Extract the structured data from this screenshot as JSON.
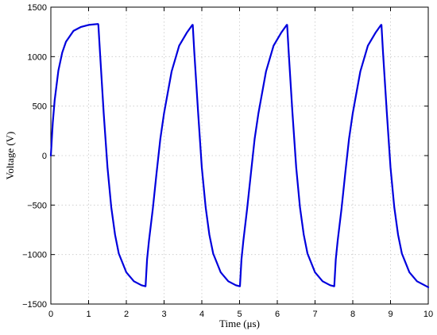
{
  "chart_data": {
    "type": "line",
    "xlabel": "Time (μs)",
    "ylabel": "Voltage (V)",
    "xlim": [
      0,
      10
    ],
    "ylim": [
      -1500,
      1500
    ],
    "x_ticks": [
      0,
      1,
      2,
      3,
      4,
      5,
      6,
      7,
      8,
      9,
      10
    ],
    "y_ticks": [
      -1500,
      -1000,
      -500,
      0,
      500,
      1000,
      1500
    ],
    "x_tick_labels": [
      "0",
      "1",
      "2",
      "3",
      "4",
      "5",
      "6",
      "7",
      "8",
      "9",
      "10"
    ],
    "y_tick_labels": [
      "−1500",
      "−1000",
      "−500",
      "0",
      "500",
      "1000",
      "1500"
    ],
    "grid": true,
    "line_color": "#0000dd",
    "series": [
      {
        "x": [
          0,
          0.05,
          0.1,
          0.2,
          0.3,
          0.4,
          0.6,
          0.8,
          1.0,
          1.25,
          1.26,
          1.3,
          1.4,
          1.5,
          1.6,
          1.7,
          1.8,
          2.0,
          2.2,
          2.4,
          2.5,
          2.51,
          2.55,
          2.6,
          2.7,
          2.8,
          2.9,
          3.0,
          3.2,
          3.4,
          3.6,
          3.75,
          3.76,
          3.8,
          3.9,
          4.0,
          4.1,
          4.2,
          4.3,
          4.5,
          4.7,
          4.9,
          5.0,
          5.01,
          5.05,
          5.1,
          5.2,
          5.3,
          5.4,
          5.5,
          5.7,
          5.9,
          6.1,
          6.25,
          6.26,
          6.3,
          6.4,
          6.5,
          6.6,
          6.7,
          6.8,
          7.0,
          7.2,
          7.4,
          7.5,
          7.51,
          7.55,
          7.6,
          7.7,
          7.8,
          7.9,
          8.0,
          8.2,
          8.4,
          8.6,
          8.75,
          8.76,
          8.8,
          8.9,
          9.0,
          9.1,
          9.2,
          9.3,
          9.5,
          9.7,
          9.9,
          10.0
        ],
        "values": [
          0,
          330,
          560,
          860,
          1040,
          1150,
          1260,
          1300,
          1320,
          1330,
          1320,
          1050,
          430,
          -120,
          -520,
          -800,
          -990,
          -1180,
          -1270,
          -1310,
          -1320,
          -1320,
          -1050,
          -860,
          -540,
          -180,
          170,
          430,
          850,
          1110,
          1240,
          1320,
          1320,
          1050,
          440,
          -120,
          -520,
          -800,
          -990,
          -1180,
          -1270,
          -1310,
          -1320,
          -1320,
          -1050,
          -860,
          -540,
          -180,
          170,
          430,
          850,
          1110,
          1240,
          1320,
          1320,
          1050,
          440,
          -120,
          -520,
          -800,
          -990,
          -1180,
          -1270,
          -1310,
          -1320,
          -1320,
          -1050,
          -860,
          -540,
          -180,
          170,
          430,
          850,
          1110,
          1240,
          1320,
          1320,
          1050,
          440,
          -120,
          -520,
          -800,
          -990,
          -1180,
          -1270,
          -1310,
          -1330
        ]
      }
    ]
  }
}
